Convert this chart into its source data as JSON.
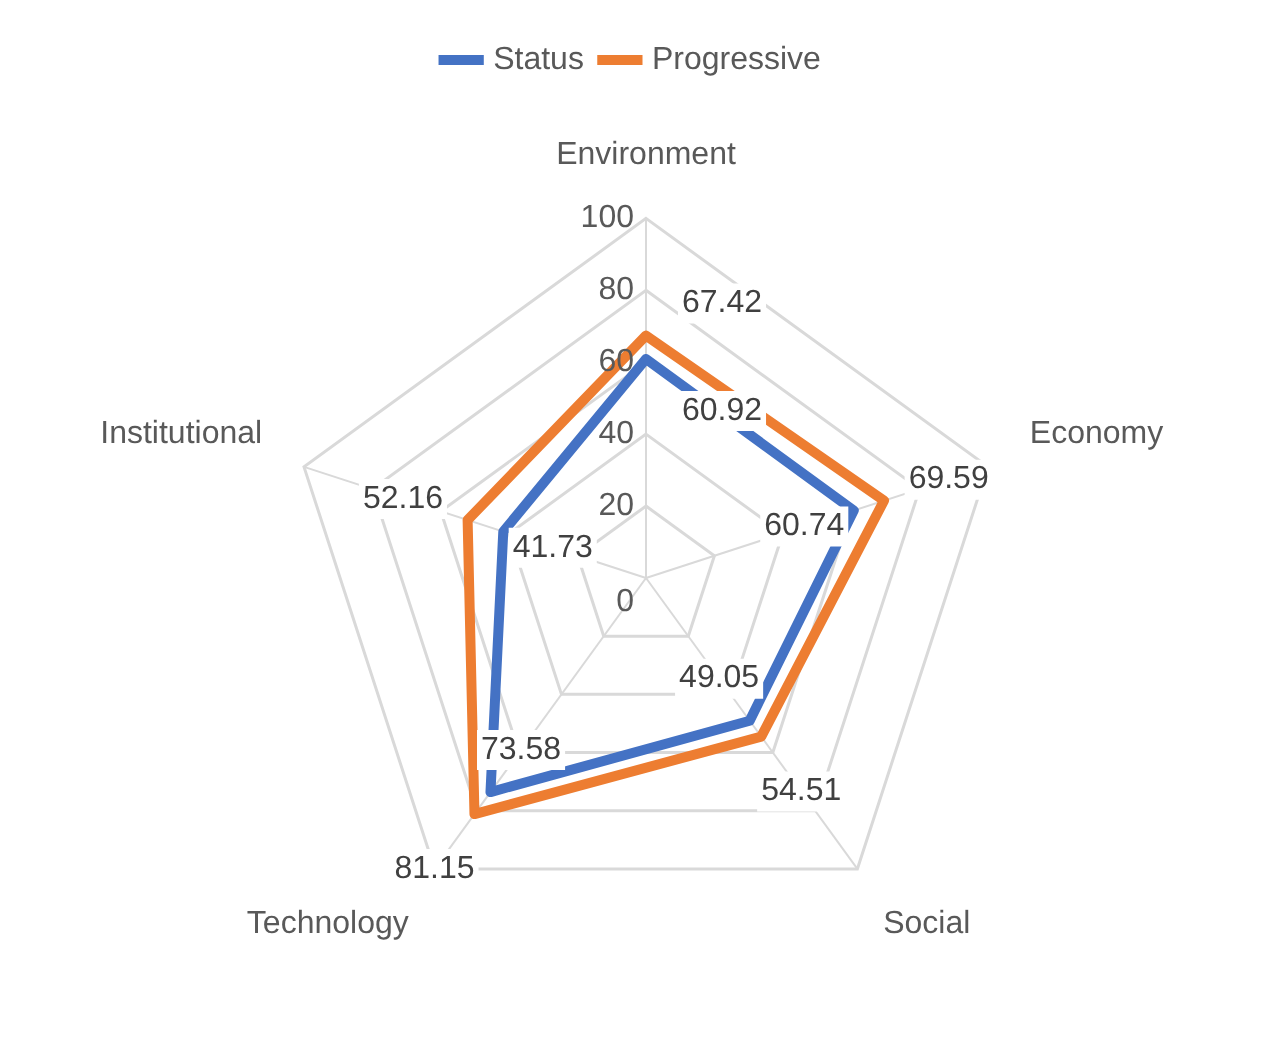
{
  "chart_data": {
    "type": "radar",
    "categories": [
      "Environment",
      "Economy",
      "Social",
      "Technology",
      "Institutional"
    ],
    "series": [
      {
        "name": "Status",
        "color": "#4472c4",
        "values": [
          60.92,
          60.74,
          49.05,
          73.58,
          41.73
        ]
      },
      {
        "name": "Progressive",
        "color": "#ed7d31",
        "values": [
          67.42,
          69.59,
          54.51,
          81.15,
          52.16
        ]
      }
    ],
    "ylim": [
      0,
      100
    ],
    "yticks": [
      0,
      20,
      40,
      60,
      80,
      100
    ],
    "grid": true,
    "legend": "top",
    "data_labels": true
  }
}
